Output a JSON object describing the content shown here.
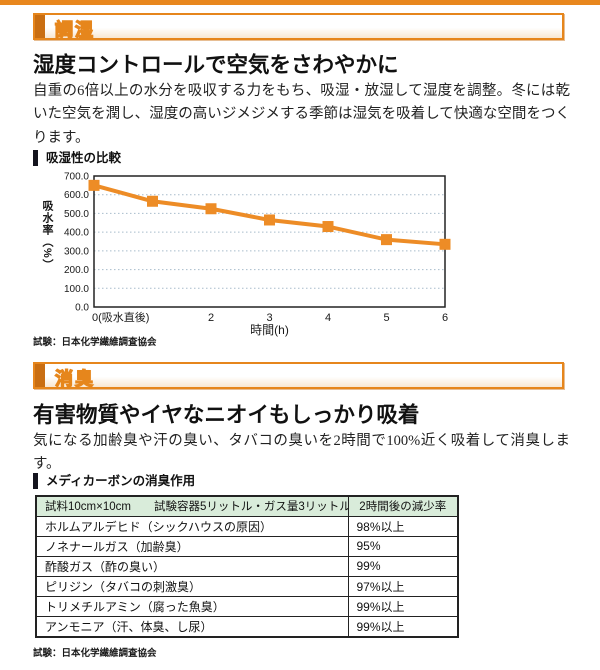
{
  "colors": {
    "accent_orange": "#E6861C",
    "accent_orange_dark": "#C96E12",
    "top_bar_orange": "#E8871E",
    "chart_line": "#ED8C26",
    "table_header_bg": "#D9ECDA",
    "grid_dotted": "#A8BCCB",
    "plot_border": "#222222"
  },
  "humidity_section": {
    "tag_label": "調湿",
    "heading": "湿度コントロールで空気をさわやかに",
    "body": "自重の6倍以上の水分を吸収する力をもち、吸湿・放湿して湿度を調整。冬には乾いた空気を潤し、湿度の高いジメジメする季節は湿気を吸着して快適な空間をつくります。",
    "chart_label": "吸湿性の比較",
    "source": "試験：日本化学繊維調査協会"
  },
  "chart_data": {
    "type": "line",
    "title": "吸湿性の比較",
    "x": [
      0,
      1,
      2,
      3,
      4,
      5,
      6
    ],
    "x_tick_labels": [
      "0(吸水直後)",
      "",
      "2",
      "3",
      "4",
      "5",
      "6"
    ],
    "values": [
      650,
      565,
      525,
      465,
      430,
      360,
      335
    ],
    "xlabel": "時間(h)",
    "ylabel": "吸水率（%）",
    "ylim": [
      0,
      700
    ],
    "y_ticks": [
      0,
      100,
      200,
      300,
      400,
      500,
      600,
      700
    ],
    "y_tick_labels": [
      "0.0",
      "100.0",
      "200.0",
      "300.0",
      "400.0",
      "500.0",
      "600.0",
      "700.0"
    ],
    "grid": "horizontal-dotted",
    "legend": "none",
    "marker": "square"
  },
  "deodorant_section": {
    "tag_label": "消臭",
    "heading": "有害物質やイヤなニオイもしっかり吸着",
    "body": "気になる加齢臭や汗の臭い、タバコの臭いを2時間で100%近く吸着して消臭します。",
    "table_label": "メディカーボンの消臭作用",
    "table": {
      "header": [
        "試料10cm×10cm　　試験容器5リットル・ガス量3リットル",
        "2時間後の減少率"
      ],
      "rows": [
        [
          "ホルムアルデヒド（シックハウスの原因）",
          "98%以上"
        ],
        [
          "ノネナールガス（加齢臭）",
          "95%"
        ],
        [
          "酢酸ガス（酢の臭い）",
          "99%"
        ],
        [
          "ピリジン（タバコの刺激臭）",
          "97%以上"
        ],
        [
          "トリメチルアミン（腐った魚臭）",
          "99%以上"
        ],
        [
          "アンモニア（汗、体臭、し尿）",
          "99%以上"
        ]
      ]
    },
    "source": "試験：日本化学繊維調査協会"
  }
}
